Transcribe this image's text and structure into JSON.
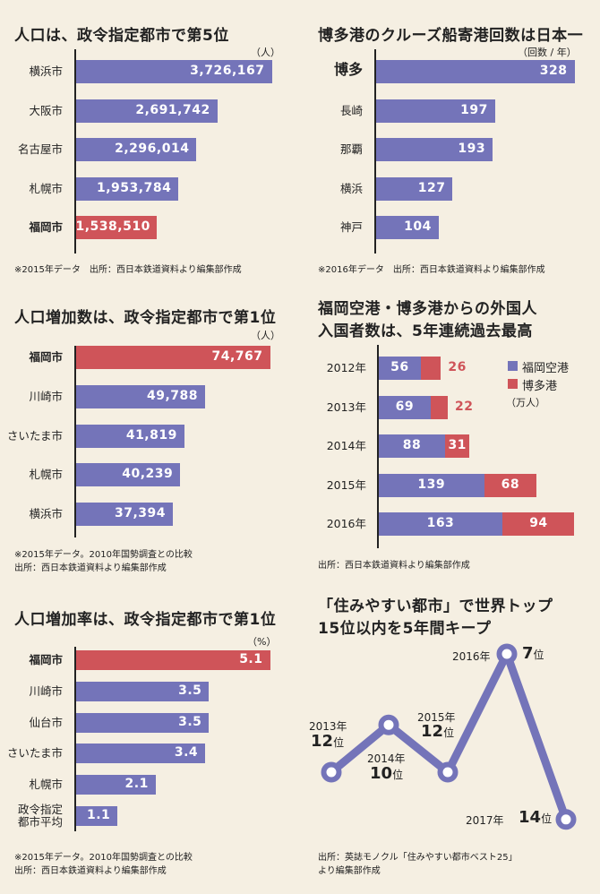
{
  "colors": {
    "primary_bar": "#7474b9",
    "highlight_bar": "#cf5459",
    "background": "#f5efe2"
  },
  "chart_data": [
    {
      "type": "bar",
      "orientation": "horizontal",
      "title": "人口は、政令指定都市で第5位",
      "unit": "（人）",
      "categories": [
        "横浜市",
        "大阪市",
        "名古屋市",
        "札幌市",
        "福岡市"
      ],
      "values": [
        3726167,
        2691742,
        2296014,
        1953784,
        1538510
      ],
      "value_labels": [
        "3,726,167",
        "2,691,742",
        "2,296,014",
        "1,953,784",
        "1,538,510"
      ],
      "highlight": "福岡市",
      "footnote": [
        "※2015年データ　出所：西日本鉄道資料より編集部作成"
      ]
    },
    {
      "type": "bar",
      "orientation": "horizontal",
      "title": "博多港のクルーズ船寄港回数は日本一",
      "unit": "（回数 / 年）",
      "categories": [
        "博多",
        "長崎",
        "那覇",
        "横浜",
        "神戸"
      ],
      "values": [
        328,
        197,
        193,
        127,
        104
      ],
      "value_labels": [
        "328",
        "197",
        "193",
        "127",
        "104"
      ],
      "highlight_label": "博多",
      "footnote": [
        "※2016年データ　出所：西日本鉄道資料より編集部作成"
      ]
    },
    {
      "type": "bar",
      "orientation": "horizontal",
      "title": "人口増加数は、政令指定都市で第1位",
      "unit": "（人）",
      "categories": [
        "福岡市",
        "川崎市",
        "さいたま市",
        "札幌市",
        "横浜市"
      ],
      "values": [
        74767,
        49788,
        41819,
        40239,
        37394
      ],
      "value_labels": [
        "74,767",
        "49,788",
        "41,819",
        "40,239",
        "37,394"
      ],
      "highlight": "福岡市",
      "footnote": [
        "※2015年データ。2010年国勢調査との比較",
        "出所：西日本鉄道資料より編集部作成"
      ]
    },
    {
      "type": "bar",
      "orientation": "horizontal",
      "stacked": true,
      "title": [
        "福岡空港・博多港からの外国人",
        "入国者数は、5年連続過去最高"
      ],
      "unit": "（万人）",
      "categories": [
        "2012年",
        "2013年",
        "2014年",
        "2015年",
        "2016年"
      ],
      "series": [
        {
          "name": "福岡空港",
          "values": [
            56,
            69,
            88,
            139,
            163
          ]
        },
        {
          "name": "博多港",
          "values": [
            26,
            22,
            31,
            68,
            94
          ]
        }
      ],
      "legend": "top-right",
      "footnote": [
        "出所：西日本鉄道資料より編集部作成"
      ]
    },
    {
      "type": "bar",
      "orientation": "horizontal",
      "title": "人口増加率は、政令指定都市で第1位",
      "unit": "（%）",
      "categories": [
        "福岡市",
        "川崎市",
        "仙台市",
        "さいたま市",
        "札幌市",
        "政令指定\n都市平均"
      ],
      "values": [
        5.1,
        3.5,
        3.5,
        3.4,
        2.1,
        1.1
      ],
      "value_labels": [
        "5.1",
        "3.5",
        "3.5",
        "3.4",
        "2.1",
        "1.1"
      ],
      "highlight": "福岡市",
      "footnote": [
        "※2015年データ。2010年国勢調査との比較",
        "出所：西日本鉄道資料より編集部作成"
      ]
    },
    {
      "type": "line",
      "title": [
        "「住みやすい都市」で世界トップ",
        "15位以内を5年間キープ"
      ],
      "x": [
        "2013年",
        "2014年",
        "2015年",
        "2016年",
        "2017年"
      ],
      "y": [
        12,
        10,
        12,
        7,
        14
      ],
      "y_labels": [
        "12",
        "10",
        "12",
        "7",
        "14"
      ],
      "y_suffix": "位",
      "y_inverted": true,
      "footnote": [
        "出所：英誌モノクル「住みやすい都市ベスト25」",
        "より編集部作成"
      ]
    }
  ]
}
